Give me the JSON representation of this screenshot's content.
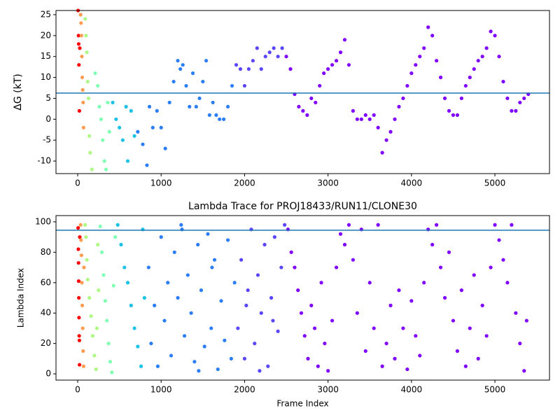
{
  "chart_data": [
    {
      "type": "scatter",
      "ylabel": "ΔG (kT)",
      "xlim": [
        -260,
        5654
      ],
      "ylim": [
        -13,
        26
      ],
      "xticks": [
        0,
        1000,
        2000,
        3000,
        4000,
        5000
      ],
      "yticks": [
        -10,
        -5,
        0,
        5,
        10,
        15,
        20,
        25
      ],
      "hline": 6.25,
      "hline_color": "#1f77b4",
      "series": [
        {
          "color": "#ff0000",
          "x": [
            5,
            10,
            12,
            15,
            20,
            25
          ],
          "values": [
            26,
            20,
            18,
            13,
            2,
            17
          ]
        },
        {
          "color": "#ff9c52",
          "x": [
            35,
            40,
            45,
            50,
            55,
            60,
            65,
            70
          ],
          "values": [
            25,
            23,
            20,
            15,
            10,
            7,
            4,
            -2
          ]
        },
        {
          "color": "#b0f886",
          "x": [
            90,
            100,
            110,
            120,
            130,
            140,
            150,
            170
          ],
          "values": [
            24,
            20,
            16,
            9,
            5,
            -4,
            -8,
            -12
          ]
        },
        {
          "color": "#80ffb4",
          "x": [
            210,
            240,
            260,
            280,
            300,
            320,
            340,
            360,
            380
          ],
          "values": [
            11,
            8,
            3,
            0,
            -5,
            -10,
            -12,
            4,
            -3
          ]
        },
        {
          "color": "#1bc2e6",
          "x": [
            420,
            460,
            500,
            540,
            580,
            600,
            640,
            680
          ],
          "values": [
            4,
            0,
            -2,
            -5,
            3,
            -10,
            2,
            -4
          ]
        },
        {
          "color": "#2c7ef7",
          "x": [
            720,
            780,
            830,
            860,
            900,
            950,
            1000,
            1050,
            1100,
            1150,
            1200,
            1230,
            1260,
            1300,
            1340,
            1380,
            1420,
            1460,
            1500,
            1540,
            1580,
            1620,
            1660,
            1700,
            1750,
            1800,
            1850
          ],
          "values": [
            -3,
            -6,
            -11,
            3,
            -2,
            2,
            -2,
            -7,
            4,
            9,
            14,
            12,
            13,
            8,
            3,
            11,
            3,
            5,
            9,
            14,
            1,
            4,
            1,
            0,
            0,
            3,
            8
          ]
        },
        {
          "color": "#5a46fb",
          "x": [
            1900,
            1950,
            2000,
            2050,
            2100,
            2150,
            2200,
            2250,
            2300,
            2350,
            2400,
            2450
          ],
          "values": [
            13,
            12,
            8,
            12,
            14,
            17,
            12,
            15,
            16,
            17,
            15,
            17
          ]
        },
        {
          "color": "#8000ff",
          "x": [
            2500,
            2550,
            2600,
            2650,
            2700,
            2750,
            2800,
            2850,
            2900,
            2950,
            3000,
            3050,
            3100,
            3150,
            3200,
            3250,
            3300,
            3350,
            3400,
            3450,
            3500,
            3550,
            3600,
            3650,
            3700,
            3750,
            3800,
            3850,
            3900,
            3950,
            4000,
            4050,
            4100,
            4150,
            4200,
            4250,
            4300,
            4350,
            4400,
            4450,
            4500,
            4550,
            4600,
            4650,
            4700,
            4750,
            4800,
            4850,
            4900,
            4950,
            5000,
            5050,
            5100,
            5150,
            5200,
            5250,
            5300,
            5350,
            5400
          ],
          "values": [
            15,
            12,
            6,
            3,
            2,
            1,
            5,
            4,
            8,
            11,
            12,
            13,
            14,
            16,
            19,
            13,
            2,
            0,
            0,
            1,
            0,
            1,
            -2,
            -8,
            -5,
            -3,
            0,
            3,
            5,
            8,
            11,
            13,
            15,
            17,
            22,
            20,
            14,
            10,
            5,
            2,
            1,
            1,
            5,
            8,
            10,
            12,
            14,
            15,
            17,
            21,
            20,
            15,
            9,
            5,
            2,
            2,
            4,
            5,
            6
          ]
        }
      ]
    },
    {
      "type": "scatter",
      "title": "Lambda Trace for PROJ18433/RUN11/CLONE30",
      "xlabel": "Frame Index",
      "ylabel": "Lambda Index",
      "xlim": [
        -260,
        5654
      ],
      "ylim": [
        -4.1,
        104.1
      ],
      "xticks": [
        0,
        1000,
        2000,
        3000,
        4000,
        5000
      ],
      "yticks": [
        0,
        20,
        40,
        60,
        80,
        100
      ],
      "hline": 94.5,
      "hline_color": "#1f77b4",
      "series": [
        {
          "color": "#ff0000",
          "x": [
            5,
            8,
            10,
            12,
            14,
            16,
            18,
            20,
            22,
            25
          ],
          "values": [
            96,
            82,
            73,
            61,
            50,
            37,
            25,
            22,
            6,
            90
          ]
        },
        {
          "color": "#ff9c52",
          "x": [
            35,
            40,
            45,
            50,
            55,
            60,
            65,
            70,
            75
          ],
          "values": [
            98,
            88,
            78,
            60,
            45,
            30,
            15,
            5,
            70
          ]
        },
        {
          "color": "#b0f886",
          "x": [
            90,
            100,
            110,
            120,
            140,
            160,
            180,
            200,
            220,
            240,
            250,
            230
          ],
          "values": [
            98,
            90,
            75,
            62,
            50,
            38,
            25,
            12,
            3,
            85,
            55,
            30
          ]
        },
        {
          "color": "#80ffb4",
          "x": [
            270,
            290,
            310,
            330,
            350,
            370,
            390,
            410,
            430,
            450
          ],
          "values": [
            97,
            80,
            65,
            48,
            35,
            20,
            8,
            1,
            58,
            90
          ]
        },
        {
          "color": "#1bc2e6",
          "x": [
            480,
            520,
            560,
            600,
            640,
            680,
            720,
            760,
            780,
            800
          ],
          "values": [
            98,
            85,
            70,
            60,
            45,
            30,
            18,
            5,
            95,
            50
          ]
        },
        {
          "color": "#2c7ef7",
          "x": [
            850,
            880,
            920,
            960,
            1000,
            1040,
            1080,
            1120,
            1160,
            1200,
            1240,
            1280,
            1320,
            1360,
            1400,
            1440,
            1480,
            1520,
            1560,
            1600,
            1640,
            1680,
            1720,
            1760,
            1800,
            1840,
            1880,
            1250,
            1450,
            1610
          ],
          "values": [
            70,
            20,
            45,
            5,
            90,
            35,
            60,
            12,
            80,
            50,
            98,
            25,
            65,
            40,
            8,
            85,
            55,
            18,
            92,
            30,
            75,
            3,
            48,
            22,
            88,
            10,
            60,
            95,
            2,
            70
          ]
        },
        {
          "color": "#5a46fb",
          "x": [
            1920,
            1960,
            2000,
            2040,
            2080,
            2120,
            2160,
            2200,
            2240,
            2280,
            2320,
            2360,
            2400,
            2440,
            2480,
            2020,
            2180,
            2340
          ],
          "values": [
            30,
            75,
            10,
            55,
            95,
            20,
            65,
            40,
            85,
            5,
            50,
            90,
            28,
            70,
            98,
            45,
            2,
            35
          ]
        },
        {
          "color": "#8000ff",
          "x": [
            2520,
            2560,
            2600,
            2640,
            2680,
            2720,
            2760,
            2800,
            2840,
            2880,
            2920,
            2960,
            3000,
            3050,
            3100,
            3150,
            3200,
            3250,
            3300,
            3350,
            3400,
            3450,
            3500,
            3550,
            3600,
            3650,
            3700,
            3750,
            3800,
            3850,
            3900,
            3950,
            4000,
            4050,
            4100,
            4150,
            4200,
            4250,
            4300,
            4350,
            4400,
            4450,
            4500,
            4550,
            4600,
            4650,
            4700,
            4750,
            4800,
            4850,
            4900,
            4950,
            5000,
            5050,
            5100,
            5150,
            5200,
            5250,
            5300,
            5350,
            5380
          ],
          "values": [
            95,
            80,
            70,
            55,
            40,
            25,
            10,
            45,
            30,
            5,
            60,
            20,
            2,
            35,
            70,
            92,
            85,
            98,
            75,
            40,
            95,
            15,
            60,
            30,
            98,
            5,
            20,
            45,
            10,
            55,
            30,
            3,
            48,
            25,
            12,
            60,
            95,
            85,
            98,
            70,
            50,
            80,
            35,
            15,
            55,
            5,
            30,
            65,
            10,
            45,
            25,
            70,
            98,
            88,
            75,
            60,
            98,
            40,
            20,
            2,
            35
          ]
        }
      ]
    }
  ]
}
